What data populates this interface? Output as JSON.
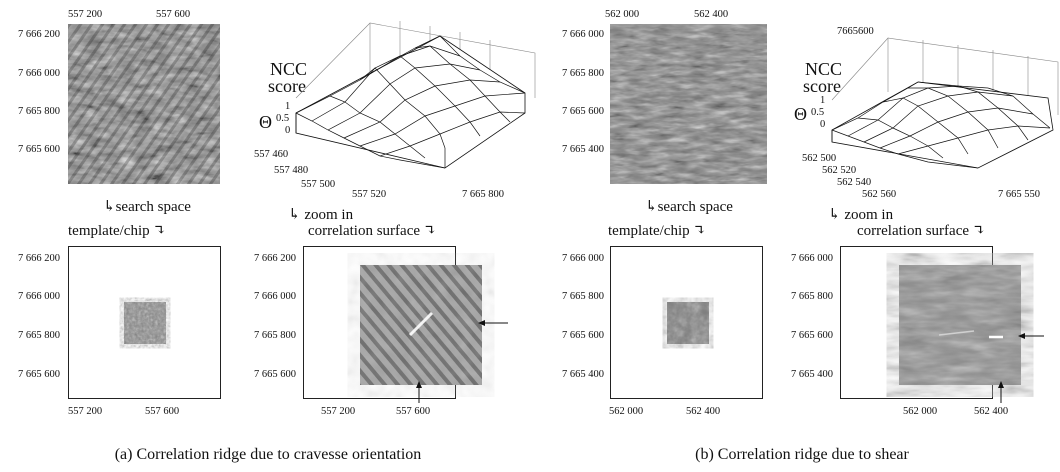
{
  "panels": [
    {
      "id": "a",
      "caption": "(a) Correlation ridge due to cravesse orientation",
      "search": {
        "top_ticks": [
          "557 200",
          "557 600"
        ],
        "left_ticks": [
          "7 666 200",
          "7 666 000",
          "7 665 800",
          "7 665 600"
        ],
        "label": "search space"
      },
      "surface": {
        "z_label_1": "NCC",
        "z_label_2": "score",
        "theta": "Θ",
        "z_ticks": [
          "1",
          "0.5",
          "0"
        ],
        "x_ticks": [
          "557 460",
          "557 480",
          "557 500",
          "557 520"
        ],
        "y_tick": "7 665 800",
        "zoom_label": "zoom in"
      },
      "chip": {
        "label": "template/chip",
        "left_ticks": [
          "7 666 200",
          "7 666 000",
          "7 665 800",
          "7 665 600"
        ],
        "bottom_ticks": [
          "557 200",
          "557 600"
        ]
      },
      "corr": {
        "label": "correlation surface",
        "left_ticks": [
          "7 666 200",
          "7 666 000",
          "7 665 800",
          "7 665 600"
        ],
        "bottom_ticks": [
          "557 200",
          "557 600"
        ]
      }
    },
    {
      "id": "b",
      "caption": "(b) Correlation ridge due to shear",
      "search": {
        "top_ticks": [
          "562 000",
          "562 400"
        ],
        "left_ticks": [
          "7 666 000",
          "7 665 800",
          "7 665 600",
          "7 665 400"
        ],
        "label": "search space"
      },
      "surface": {
        "z_label_1": "NCC",
        "z_label_2": "score",
        "theta": "Θ",
        "z_ticks": [
          "1",
          "0.5",
          "0"
        ],
        "x_ticks": [
          "562 500",
          "562 520",
          "562 540",
          "562 560"
        ],
        "y_tick": "7 665 550",
        "y_tick_top": "7665600",
        "zoom_label": "zoom in"
      },
      "chip": {
        "label": "template/chip",
        "left_ticks": [
          "7 666 000",
          "7 665 800",
          "7 665 600",
          "7 665 400"
        ],
        "bottom_ticks": [
          "562 000",
          "562 400"
        ]
      },
      "corr": {
        "label": "correlation surface",
        "left_ticks": [
          "7 666 000",
          "7 665 800",
          "7 665 600",
          "7 665 400"
        ],
        "bottom_ticks": [
          "562 000",
          "562 400"
        ]
      }
    }
  ]
}
